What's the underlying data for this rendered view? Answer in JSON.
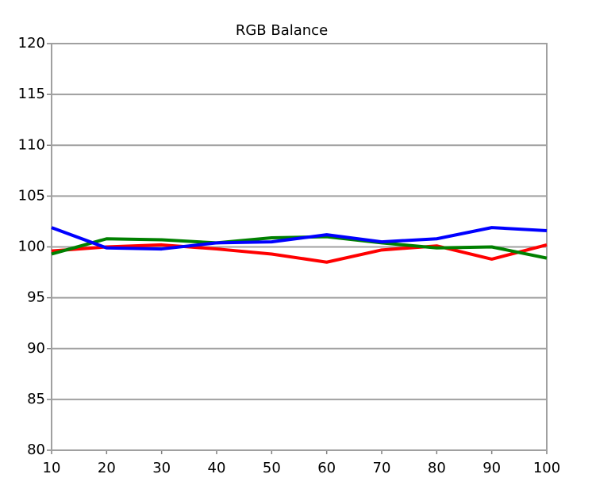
{
  "chart_data": {
    "type": "line",
    "title": "RGB Balance",
    "x": [
      10,
      20,
      30,
      40,
      50,
      60,
      70,
      80,
      90,
      100
    ],
    "xlim": [
      10,
      100
    ],
    "xticks": [
      10,
      20,
      30,
      40,
      50,
      60,
      70,
      80,
      90,
      100
    ],
    "ylim": [
      80,
      120
    ],
    "yticks": [
      80,
      85,
      90,
      95,
      100,
      105,
      110,
      115,
      120
    ],
    "grid": true,
    "series": [
      {
        "color": "#ff0000",
        "values": [
          99.6,
          100.0,
          100.2,
          99.8,
          99.3,
          98.5,
          99.7,
          100.1,
          98.8,
          100.2
        ]
      },
      {
        "color": "#008000",
        "values": [
          99.3,
          100.8,
          100.7,
          100.4,
          100.9,
          101.0,
          100.4,
          99.9,
          100.0,
          98.9
        ]
      },
      {
        "color": "#0000ff",
        "values": [
          101.9,
          99.9,
          99.8,
          100.4,
          100.5,
          101.2,
          100.5,
          100.8,
          101.9,
          101.6
        ]
      }
    ]
  }
}
